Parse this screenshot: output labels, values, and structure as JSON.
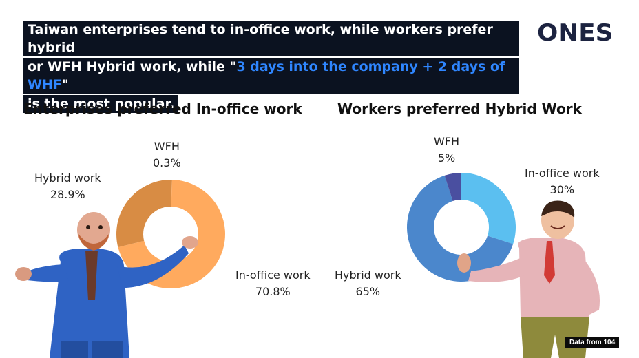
{
  "headline": {
    "line1": "Taiwan enterprises tend to in-office work, while workers prefer hybrid",
    "line2_pre": "or WFH Hybrid work, while \"",
    "line2_highlight": "3 days into the company + 2 days of WHF",
    "line2_post": "\"",
    "line3": "is the most popular."
  },
  "logo": {
    "text": "ONES"
  },
  "credit": "Data from 104",
  "colors": {
    "headline_bg": "#0b1220",
    "highlight": "#2f86ff",
    "ent_in_office": "#ffaa5e",
    "ent_hybrid": "#d88c44",
    "ent_wfh": "#b87a3c",
    "wrk_in_office": "#5bbff0",
    "wrk_hybrid": "#4b87cc",
    "wrk_wfh": "#4a4fa0"
  },
  "chart_data": [
    {
      "type": "pie",
      "title": "Enterprises preferred In-office work",
      "slices": [
        {
          "label": "WFH",
          "value": 0.3,
          "display": "0.3%"
        },
        {
          "label": "In-office work",
          "value": 70.8,
          "display": "70.8%"
        },
        {
          "label": "Hybrid work",
          "value": 28.9,
          "display": "28.9%"
        }
      ]
    },
    {
      "type": "pie",
      "title": "Workers preferred Hybrid Work",
      "slices": [
        {
          "label": "In-office work",
          "value": 30,
          "display": "30%"
        },
        {
          "label": "Hybrid work",
          "value": 65,
          "display": "65%"
        },
        {
          "label": "WFH",
          "value": 5,
          "display": "5%"
        }
      ]
    }
  ]
}
